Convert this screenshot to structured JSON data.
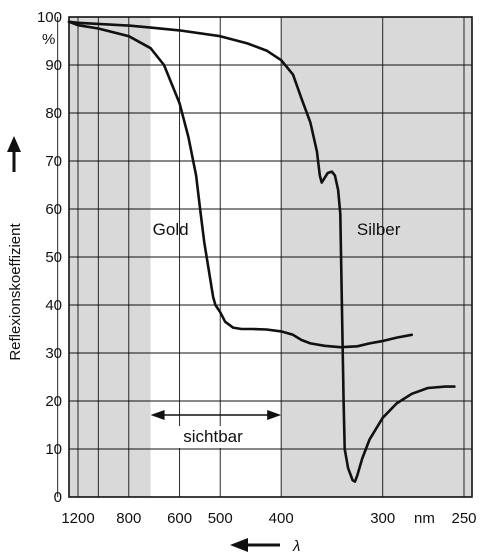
{
  "chart_data": {
    "type": "line",
    "title": "",
    "xlabel": "λ",
    "ylabel": "Reflexionskoeffizient",
    "y_unit": "%",
    "x_unit": "nm",
    "x_direction": "decreasing-left-to-right (reciprocal wavelength scale)",
    "ylim": [
      0,
      100
    ],
    "y_ticks": [
      0,
      10,
      20,
      30,
      40,
      50,
      60,
      70,
      80,
      90,
      100
    ],
    "x_tick_labels": [
      "1200",
      "800",
      "600",
      "500",
      "400",
      "300",
      "250"
    ],
    "grid": true,
    "shaded_regions": [
      {
        "from_nm": 2000,
        "to_nm": 700,
        "color": "#d9d9d9"
      },
      {
        "from_nm": 400,
        "to_nm": 240,
        "color": "#d9d9d9"
      }
    ],
    "visible_band": {
      "label": "sichtbar",
      "from_nm": 700,
      "to_nm": 400
    },
    "series": [
      {
        "name": "Gold",
        "points": [
          [
            2000,
            99
          ],
          [
            1200,
            98.3
          ],
          [
            1000,
            97.6
          ],
          [
            800,
            96
          ],
          [
            700,
            93.5
          ],
          [
            650,
            90
          ],
          [
            600,
            82
          ],
          [
            575,
            75
          ],
          [
            555,
            67
          ],
          [
            545,
            60
          ],
          [
            535,
            53
          ],
          [
            525,
            47.5
          ],
          [
            515,
            41.7
          ],
          [
            510,
            40
          ],
          [
            500,
            38.5
          ],
          [
            490,
            36.5
          ],
          [
            475,
            35.3
          ],
          [
            460,
            35
          ],
          [
            440,
            35
          ],
          [
            420,
            34.9
          ],
          [
            400,
            34.5
          ],
          [
            385,
            33.8
          ],
          [
            375,
            32.7
          ],
          [
            365,
            32
          ],
          [
            350,
            31.5
          ],
          [
            335,
            31.2
          ],
          [
            320,
            31.4
          ],
          [
            310,
            32
          ],
          [
            300,
            32.5
          ],
          [
            290,
            33.2
          ],
          [
            280,
            33.8
          ]
        ]
      },
      {
        "name": "Silber",
        "points": [
          [
            2000,
            99
          ],
          [
            1200,
            98.8
          ],
          [
            800,
            98.2
          ],
          [
            700,
            97.8
          ],
          [
            600,
            97.2
          ],
          [
            500,
            96
          ],
          [
            450,
            94.5
          ],
          [
            420,
            93
          ],
          [
            400,
            91
          ],
          [
            385,
            88
          ],
          [
            375,
            83
          ],
          [
            365,
            78
          ],
          [
            358,
            72
          ],
          [
            355,
            67
          ],
          [
            353,
            65.5
          ],
          [
            350,
            66.5
          ],
          [
            347,
            67.5
          ],
          [
            343,
            67.8
          ],
          [
            340,
            67
          ],
          [
            337,
            64
          ],
          [
            335,
            59
          ],
          [
            333.5,
            40
          ],
          [
            332,
            20
          ],
          [
            331,
            10
          ],
          [
            328,
            6
          ],
          [
            324,
            3.5
          ],
          [
            322,
            3.2
          ],
          [
            320,
            4.5
          ],
          [
            316,
            8
          ],
          [
            310,
            12
          ],
          [
            300,
            16.5
          ],
          [
            290,
            19.5
          ],
          [
            280,
            21.5
          ],
          [
            270,
            22.7
          ],
          [
            260,
            23
          ],
          [
            255,
            23
          ]
        ]
      }
    ]
  }
}
